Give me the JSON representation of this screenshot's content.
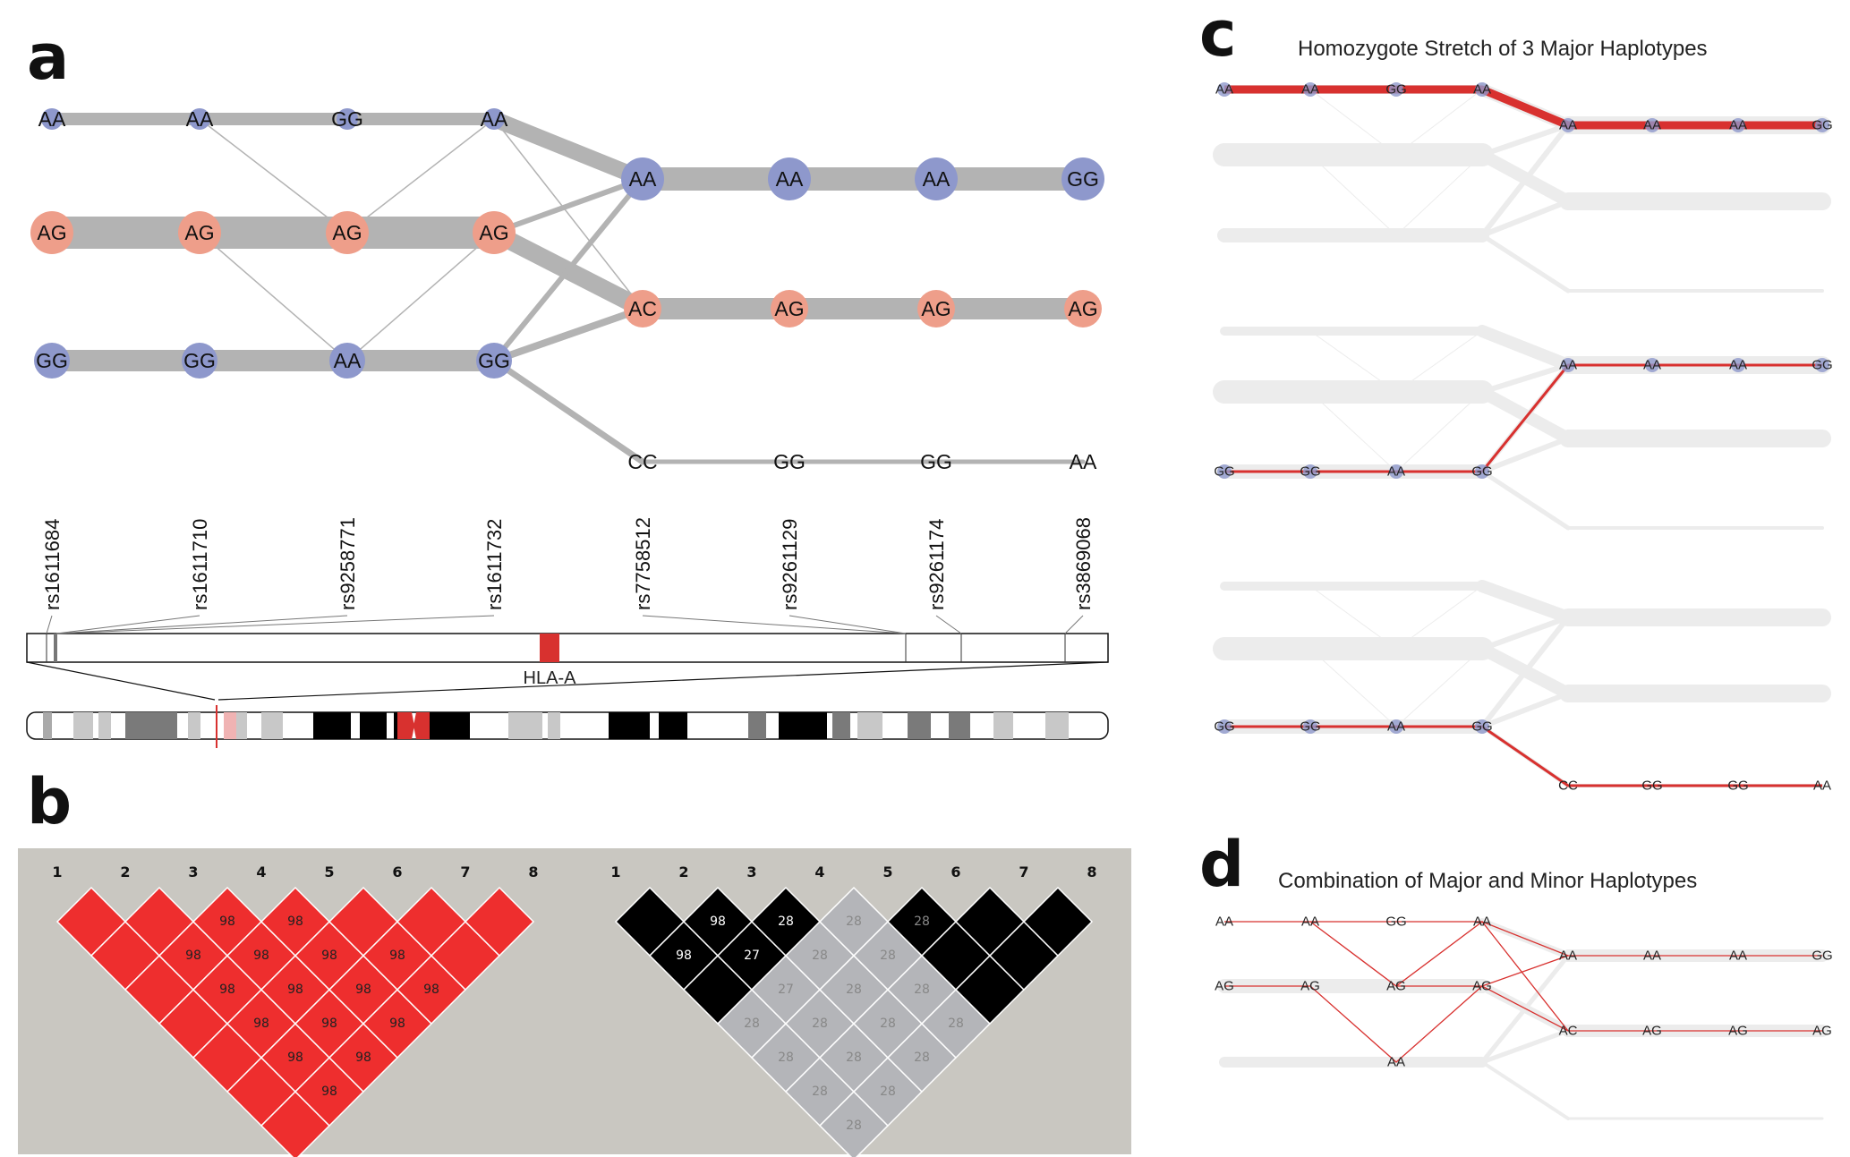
{
  "panels": {
    "a": {
      "letter": "a"
    },
    "b": {
      "letter": "b"
    },
    "c": {
      "letter": "c",
      "title": "Homozygote Stretch of 3 Major Haplotypes"
    },
    "d": {
      "letter": "d",
      "title": "Combination of Major and Minor Haplotypes"
    }
  },
  "colors": {
    "homozygous_node": "#8e98cc",
    "heterozygous_node": "#ee9e8a",
    "edge_gray": "#b3b3b3",
    "faded_edge": "#ececec",
    "highlight_red": "#d8312f",
    "ld_red": "#ee2e2e",
    "ld_black": "#000000",
    "ld_gray": "#b4b5b9",
    "ld_background": "#c9c7c1"
  },
  "snps": [
    "rs1611684",
    "rs1611710",
    "rs9258771",
    "rs1611732",
    "rs7758512",
    "rs9261129",
    "rs9261174",
    "rs3869068"
  ],
  "gene_label": "HLA-A",
  "genotypes": {
    "row_top": [
      "AA",
      "AA",
      "GG",
      "AA"
    ],
    "row_mid": [
      "AG",
      "AG",
      "AG",
      "AG"
    ],
    "row_bot": [
      "GG",
      "GG",
      "AA",
      "GG"
    ],
    "right_top": [
      "AA",
      "AA",
      "AA",
      "GG"
    ],
    "right_mid": [
      "AC",
      "AG",
      "AG",
      "AG"
    ],
    "right_bot": [
      "CC",
      "GG",
      "GG",
      "AA"
    ]
  },
  "panel_d_genotypes": {
    "row_top": [
      "AA",
      "AA",
      "GG",
      "AA"
    ],
    "row_mid": [
      "AG",
      "AG",
      "AG",
      "AG"
    ],
    "row_bot_node": "AA",
    "right_top": [
      "AA",
      "AA",
      "AA",
      "GG"
    ],
    "right_mid": [
      "AC",
      "AG",
      "AG",
      "AG"
    ]
  },
  "ld_left": {
    "labels": [
      "1",
      "2",
      "3",
      "4",
      "5",
      "6",
      "7",
      "8"
    ],
    "values": [
      [
        null,
        "",
        "",
        "",
        "",
        "",
        "",
        ""
      ],
      [
        null,
        null,
        "",
        "98",
        "98",
        "98",
        "98",
        "98"
      ],
      [
        null,
        null,
        null,
        "98",
        "98",
        "98",
        "98",
        "98"
      ],
      [
        null,
        null,
        null,
        null,
        "98",
        "98",
        "98",
        "98"
      ],
      [
        null,
        null,
        null,
        null,
        null,
        "",
        "98",
        "98"
      ],
      [
        null,
        null,
        null,
        null,
        null,
        null,
        "",
        ""
      ],
      [
        null,
        null,
        null,
        null,
        null,
        null,
        null,
        ""
      ]
    ]
  },
  "ld_right": {
    "labels": [
      "1",
      "2",
      "3",
      "4",
      "5",
      "6",
      "7",
      "8"
    ],
    "values": [
      [
        null,
        "",
        "98",
        "",
        "28",
        "28",
        "28",
        "28"
      ],
      [
        null,
        null,
        "98",
        "27",
        "27",
        "28",
        "28",
        "28"
      ],
      [
        null,
        null,
        null,
        "28",
        "28",
        "28",
        "28",
        "28"
      ],
      [
        null,
        null,
        null,
        null,
        "28",
        "28",
        "28",
        "28"
      ],
      [
        null,
        null,
        null,
        null,
        null,
        "28",
        "",
        ""
      ],
      [
        null,
        null,
        null,
        null,
        null,
        null,
        "",
        ""
      ],
      [
        null,
        null,
        null,
        null,
        null,
        null,
        null,
        ""
      ]
    ]
  }
}
